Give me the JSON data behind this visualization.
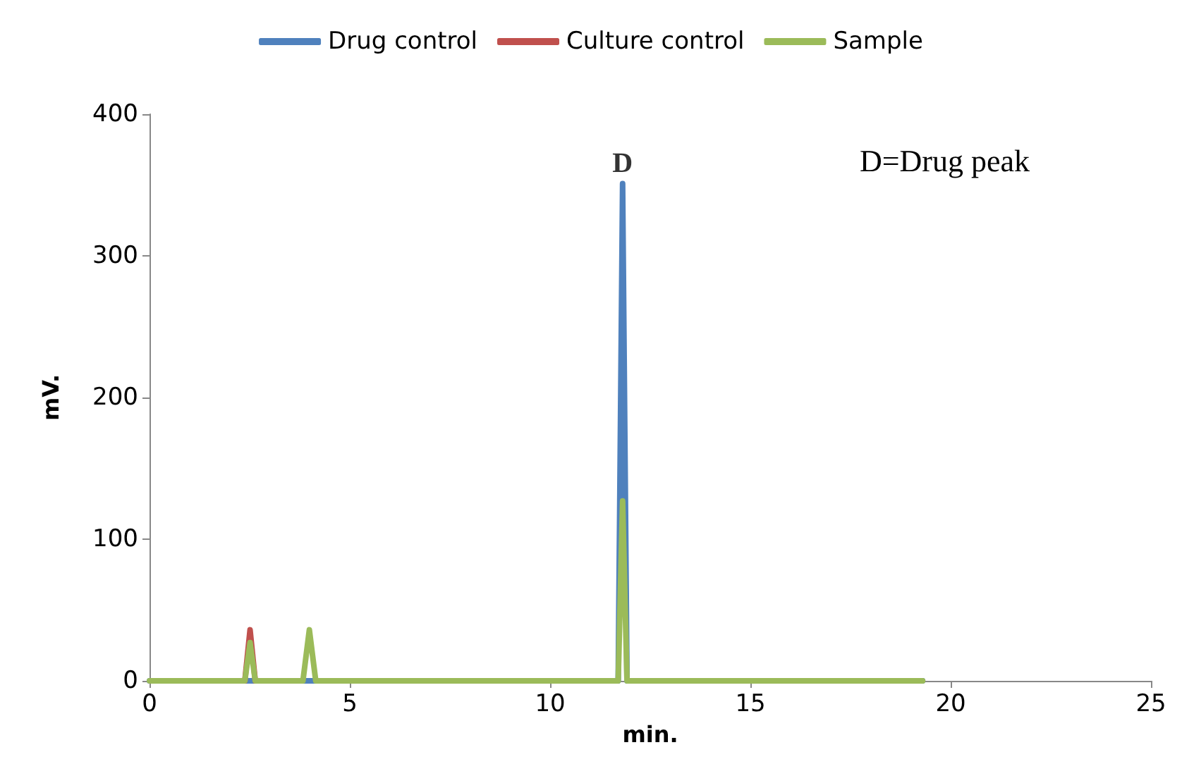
{
  "chart_data": {
    "type": "line",
    "xlabel": "min.",
    "ylabel": "mV.",
    "xlim": [
      0,
      25
    ],
    "xticks": [
      0,
      5,
      10,
      15,
      20,
      25
    ],
    "ylim": [
      0,
      400
    ],
    "yticks": [
      0,
      100,
      200,
      300,
      400
    ],
    "grid": false,
    "legend": "top",
    "marker": "none",
    "line_style": "solid",
    "annotations": [
      {
        "text": "D",
        "x": 11.81,
        "y": 351
      },
      "D=Drug peak"
    ],
    "series": [
      {
        "name": "Drug control",
        "color": "#4f81bd",
        "x": [
          0,
          11.7,
          11.81,
          11.92,
          19.3
        ],
        "values": [
          0,
          0,
          351,
          0,
          0
        ]
      },
      {
        "name": "Culture control",
        "color": "#c0504d",
        "x": [
          2.38,
          2.51,
          2.64
        ],
        "values": [
          0,
          36,
          0
        ]
      },
      {
        "name": "Sample",
        "color": "#9bbb59",
        "x": [
          0,
          2.38,
          2.51,
          2.64,
          3.83,
          3.99,
          4.15,
          11.7,
          11.81,
          11.92,
          19.3
        ],
        "values": [
          0,
          0,
          27,
          0,
          0,
          36,
          0,
          0,
          127,
          0,
          0
        ]
      }
    ]
  }
}
